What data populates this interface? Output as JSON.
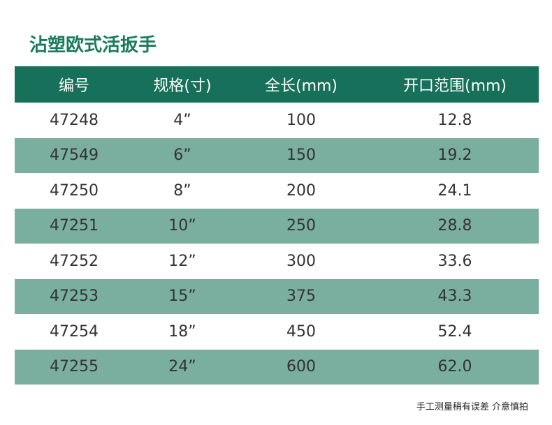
{
  "header": {
    "title": "沾塑欧式活扳手"
  },
  "table": {
    "columns": [
      "编号",
      "规格(寸)",
      "全长(mm)",
      "开口范围(mm)"
    ],
    "rows": [
      [
        "47248",
        "4”",
        "100",
        "12.8"
      ],
      [
        "47549",
        "6”",
        "150",
        "19.2"
      ],
      [
        "47250",
        "8”",
        "200",
        "24.1"
      ],
      [
        "47251",
        "10”",
        "250",
        "28.8"
      ],
      [
        "47252",
        "12”",
        "300",
        "33.6"
      ],
      [
        "47253",
        "15”",
        "375",
        "43.3"
      ],
      [
        "47254",
        "18”",
        "450",
        "52.4"
      ],
      [
        "47255",
        "24”",
        "600",
        "62.0"
      ]
    ]
  },
  "footer": {
    "note": "手工测量稍有误差 介意慎拍"
  }
}
